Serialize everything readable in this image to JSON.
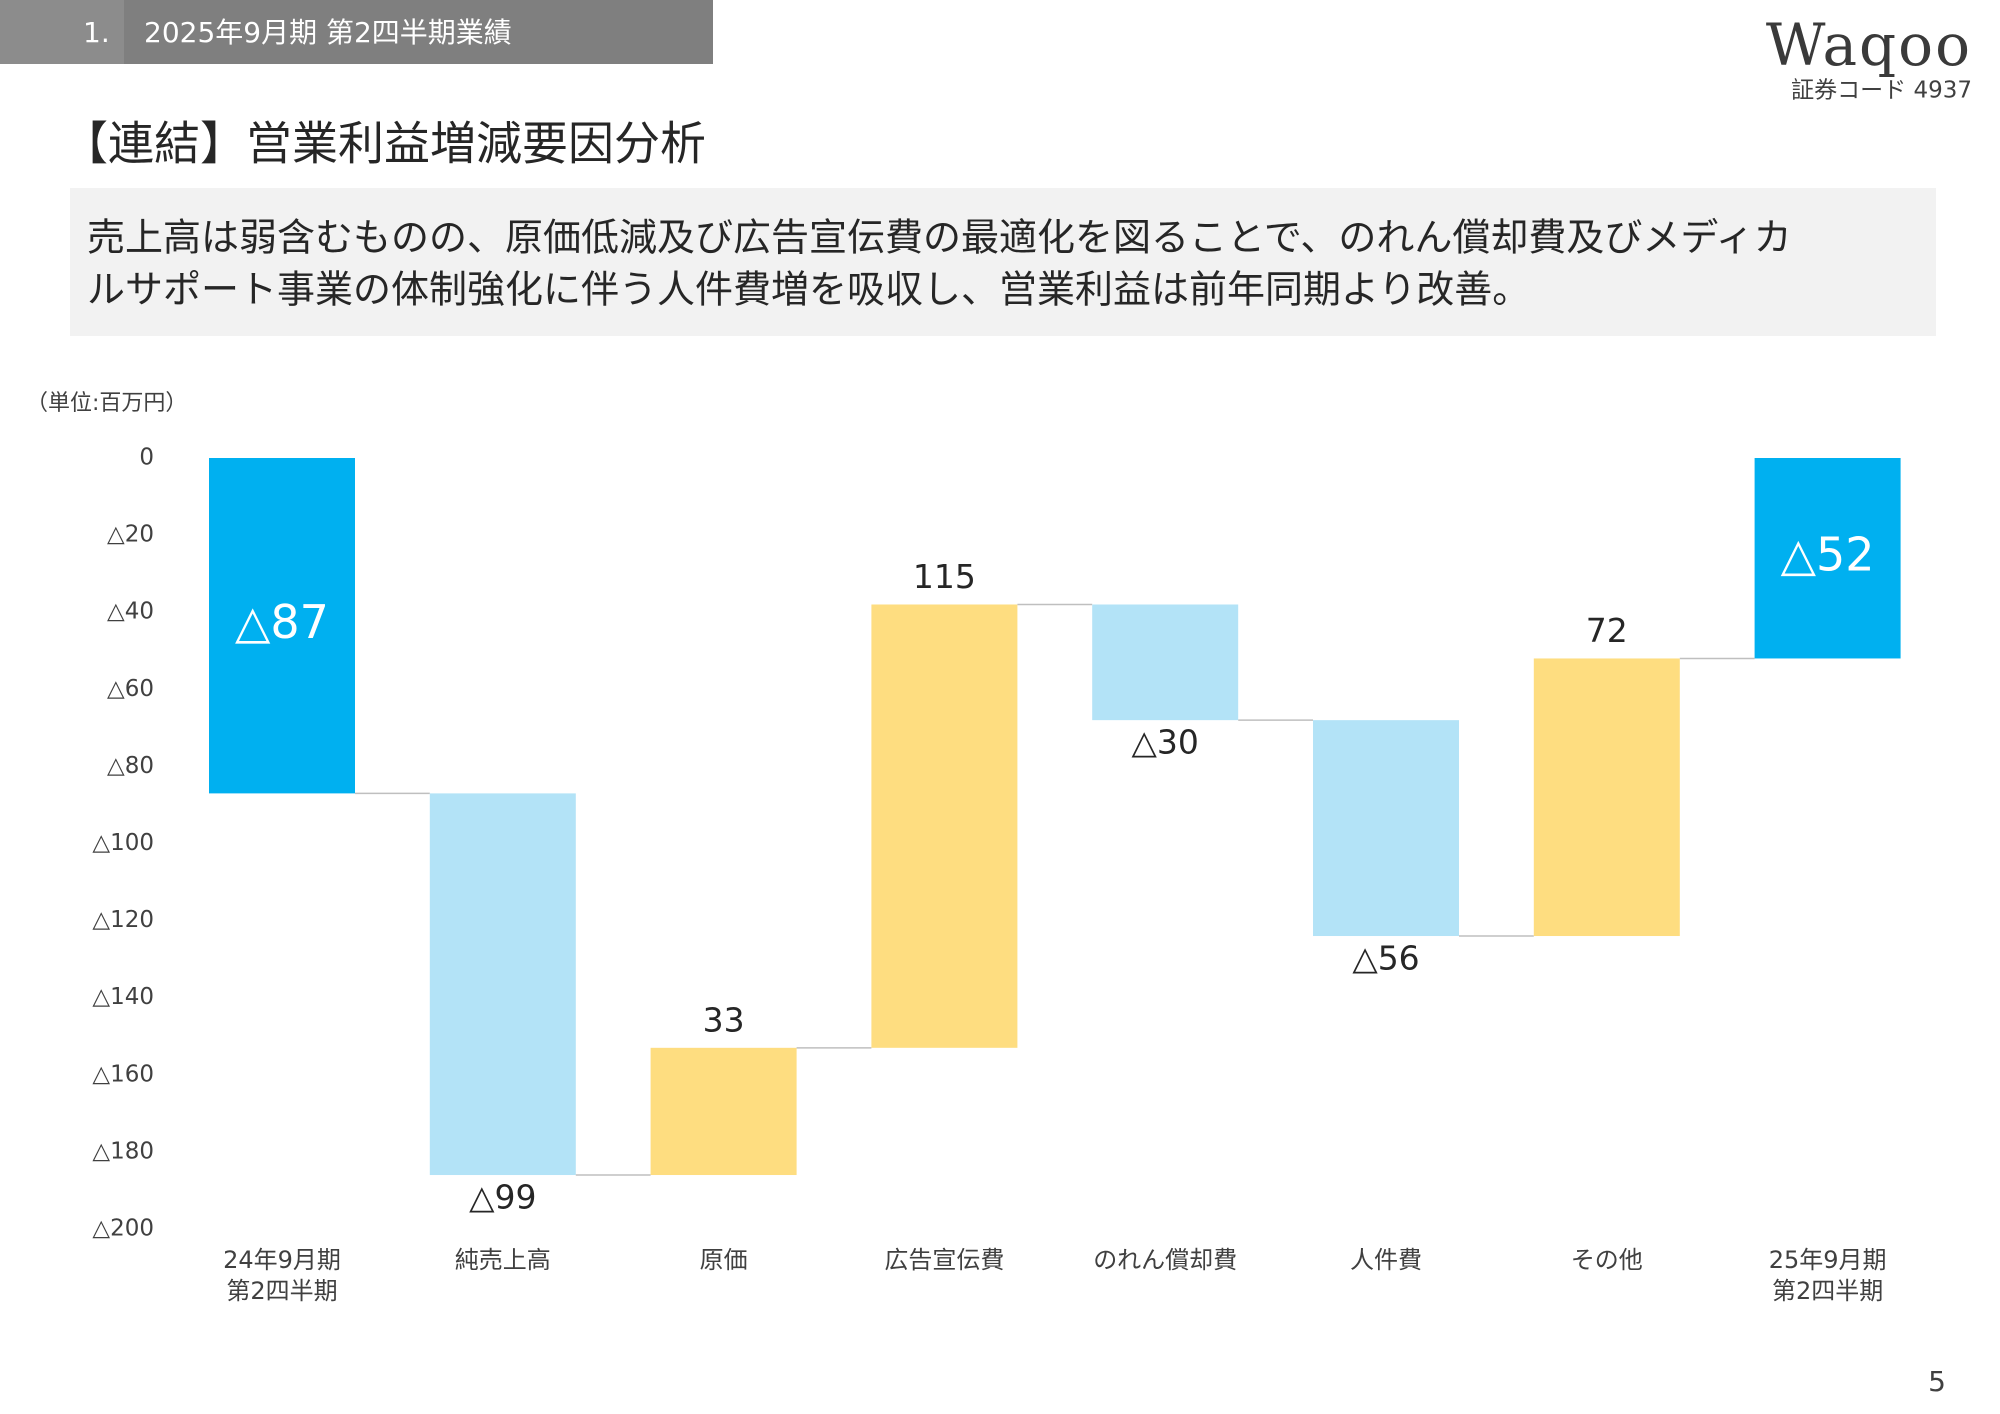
{
  "header": {
    "section_number": "1.",
    "section_title": "2025年9月期 第2四半期業績"
  },
  "logo": "Waqoo",
  "securities_code": "証券コード 4937",
  "title": "【連結】営業利益増減要因分析",
  "summary": [
    "売上高は弱含むものの、原価低減及び広告宣伝費の最適化を図ることで、のれん償却費及びメディカ",
    "ルサポート事業の体制強化に伴う人件費増を吸収し、営業利益は前年同期より改善。"
  ],
  "page_number": "5",
  "chart_data": {
    "type": "waterfall",
    "unit_label": "（単位:百万円）",
    "categories": [
      "24年9月期\n第2四半期",
      "純売上高",
      "原価",
      "広告宣伝費",
      "のれん償却費",
      "人件費",
      "その他",
      "25年9月期\n第2四半期"
    ],
    "values": [
      -87,
      -99,
      33,
      115,
      -30,
      -56,
      72,
      -52
    ],
    "value_labels": [
      "△87",
      "△99",
      "33",
      "115",
      "△30",
      "△56",
      "72",
      "△52"
    ],
    "measure": [
      "total",
      "relative",
      "relative",
      "relative",
      "relative",
      "relative",
      "relative",
      "total"
    ],
    "colors": {
      "total": "#00b0f0",
      "decrease": "#b3e3f7",
      "increase": "#fedd80"
    },
    "ylim": [
      -200,
      0
    ],
    "yticks": [
      0,
      {
        "value": -20,
        "label": "△20"
      },
      {
        "value": -40,
        "label": "△40"
      },
      {
        "value": -60,
        "label": "△60"
      },
      {
        "value": -80,
        "label": "△80"
      },
      {
        "value": -100,
        "label": "△100"
      },
      {
        "value": -120,
        "label": "△120"
      },
      {
        "value": -140,
        "label": "△140"
      },
      {
        "value": -160,
        "label": "△160"
      },
      {
        "value": -180,
        "label": "△180"
      },
      {
        "value": -200,
        "label": "△200"
      }
    ],
    "grid": false
  }
}
